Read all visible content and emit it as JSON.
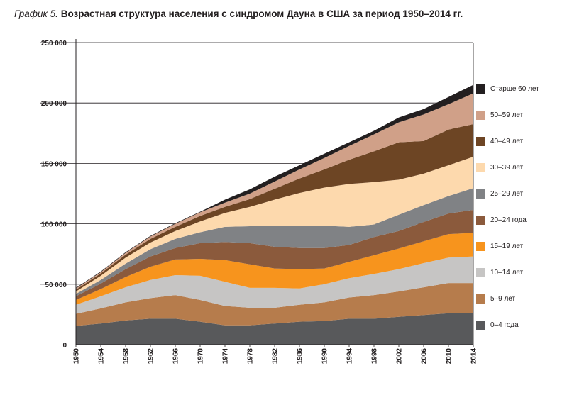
{
  "title_lead": "График 5.",
  "title_main": "Возрастная структура населения с синдромом Дауна в США за период 1950–2014 гг.",
  "chart_data": {
    "type": "area",
    "stacked": true,
    "title": "График 5. Возрастная структура населения с синдромом Дауна в США за период 1950–2014 гг.",
    "xlabel": "",
    "ylabel": "",
    "xlim": [
      1950,
      2014
    ],
    "ylim": [
      0,
      250000
    ],
    "grid": "horizontal",
    "legend_position": "right",
    "x_ticks": [
      "1950",
      "1954",
      "1958",
      "1962",
      "1966",
      "1970",
      "1974",
      "1978",
      "1982",
      "1986",
      "1990",
      "1994",
      "1998",
      "2002",
      "2006",
      "2010",
      "2014"
    ],
    "y_ticks": [
      {
        "value": 0,
        "label": "0"
      },
      {
        "value": 50000,
        "label": "50 000"
      },
      {
        "value": 100000,
        "label": "100 000"
      },
      {
        "value": 150000,
        "label": "150 000"
      },
      {
        "value": 200000,
        "label": "200 000"
      },
      {
        "value": 250000,
        "label": "250 000"
      }
    ],
    "x": [
      1950,
      1954,
      1958,
      1962,
      1966,
      1970,
      1974,
      1978,
      1982,
      1986,
      1990,
      1994,
      1998,
      2002,
      2006,
      2010,
      2014
    ],
    "series": [
      {
        "name": "0–4 года",
        "color": "#58595b",
        "values": [
          15500,
          17500,
          20000,
          21500,
          21500,
          19000,
          16000,
          16000,
          17500,
          19000,
          19500,
          21500,
          21500,
          23000,
          24500,
          26000,
          26000
        ]
      },
      {
        "name": "5–9 лет",
        "color": "#b67c4c",
        "values": [
          10000,
          12500,
          15000,
          17000,
          19500,
          18000,
          16000,
          14500,
          13000,
          14000,
          15500,
          17500,
          19500,
          21000,
          23000,
          25000,
          25000
        ]
      },
      {
        "name": "10–14 лет",
        "color": "#c6c5c4",
        "values": [
          7500,
          10000,
          12500,
          15000,
          16500,
          20000,
          20000,
          16500,
          16500,
          13500,
          15000,
          16000,
          17500,
          18500,
          20000,
          21000,
          22000
        ]
      },
      {
        "name": "15–19 лет",
        "color": "#f7941d",
        "values": [
          4000,
          6000,
          8500,
          11000,
          13000,
          14000,
          18000,
          19500,
          16000,
          16000,
          13000,
          13500,
          15500,
          17000,
          18000,
          19500,
          19500
        ]
      },
      {
        "name": "20–24 года",
        "color": "#8b5a3c",
        "values": [
          3000,
          4500,
          6500,
          8500,
          9500,
          13000,
          15000,
          17500,
          18000,
          17500,
          17000,
          14000,
          15000,
          14500,
          16000,
          17000,
          19000
        ]
      },
      {
        "name": "25–29 лет",
        "color": "#808285",
        "values": [
          2000,
          3000,
          4500,
          6000,
          7500,
          9000,
          12500,
          14000,
          17000,
          18500,
          18500,
          15000,
          10500,
          13500,
          14000,
          14500,
          18000
        ]
      },
      {
        "name": "30–39 лет",
        "color": "#fdd9ad",
        "values": [
          2000,
          3500,
          5000,
          5500,
          6500,
          9000,
          11500,
          16000,
          22000,
          27000,
          31500,
          35500,
          35000,
          29000,
          26000,
          25500,
          26000
        ]
      },
      {
        "name": "40–49 лет",
        "color": "#6d4524",
        "values": [
          1500,
          2000,
          2500,
          3000,
          3500,
          4500,
          5000,
          6500,
          9000,
          12000,
          15000,
          20000,
          25500,
          31000,
          27000,
          29500,
          27000
        ]
      },
      {
        "name": "50–59 лет",
        "color": "#d0a088",
        "values": [
          1000,
          1000,
          1500,
          2000,
          2500,
          3000,
          3500,
          4500,
          6000,
          7500,
          9500,
          11500,
          14000,
          16500,
          22000,
          21000,
          25500
        ]
      },
      {
        "name": "Старше 60 лет",
        "color": "#231f20",
        "values": [
          500,
          500,
          500,
          500,
          500,
          500,
          2500,
          3500,
          4000,
          3500,
          3500,
          3000,
          3000,
          4000,
          4500,
          6000,
          7000
        ]
      }
    ]
  }
}
